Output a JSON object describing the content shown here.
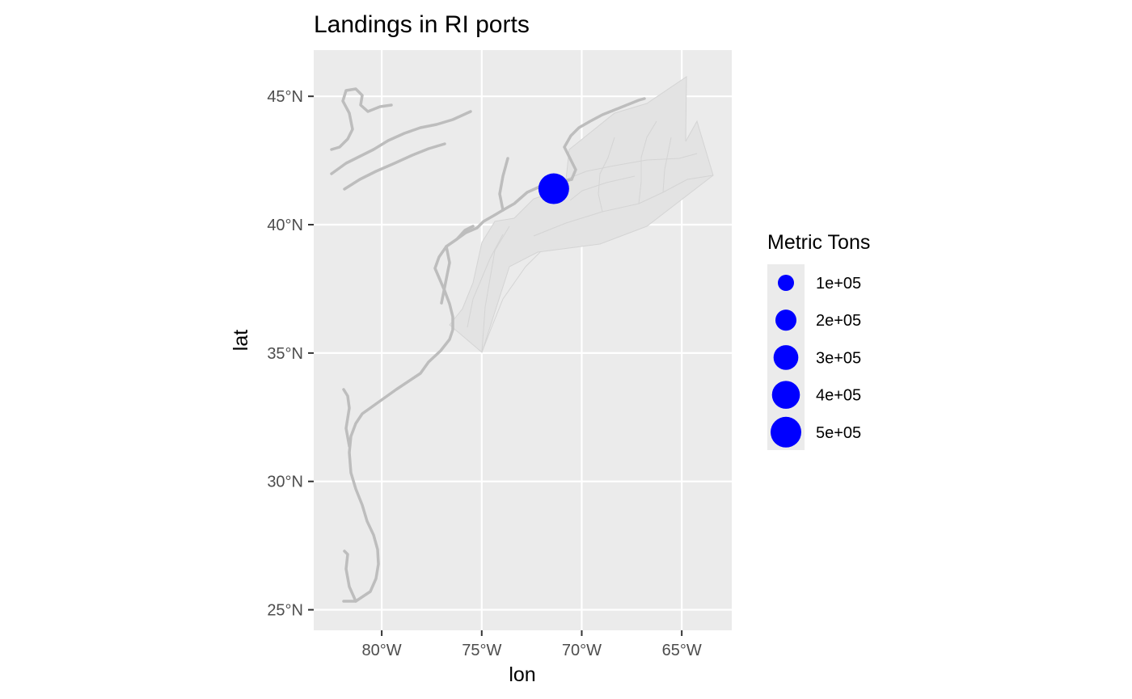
{
  "chart_data": {
    "type": "scatter",
    "title": "Landings in RI ports",
    "xlabel": "lon",
    "ylabel": "lat",
    "xlim": [
      -83.4,
      -62.5
    ],
    "ylim": [
      24.2,
      46.8
    ],
    "x_ticks": [
      {
        "value": -80,
        "label": "80°W"
      },
      {
        "value": -75,
        "label": "75°W"
      },
      {
        "value": -70,
        "label": "70°W"
      },
      {
        "value": -65,
        "label": "65°W"
      }
    ],
    "y_ticks": [
      {
        "value": 25,
        "label": "25°N"
      },
      {
        "value": 30,
        "label": "30°N"
      },
      {
        "value": 35,
        "label": "35°N"
      },
      {
        "value": 40,
        "label": "40°N"
      },
      {
        "value": 45,
        "label": "45°N"
      }
    ],
    "grid": true,
    "points": [
      {
        "lon": -71.4,
        "lat": 41.4,
        "metric_tons": 500000
      }
    ],
    "legend": {
      "title": "Metric Tons",
      "placement": "right",
      "entries": [
        {
          "label": "1e+05",
          "value": 100000
        },
        {
          "label": "2e+05",
          "value": 200000
        },
        {
          "label": "3e+05",
          "value": 300000
        },
        {
          "label": "4e+05",
          "value": 400000
        },
        {
          "label": "5e+05",
          "value": 500000
        }
      ]
    },
    "colors": {
      "panel": "#ebebeb",
      "grid": "#ffffff",
      "point": "#0000ff",
      "coast": "#bdbdbd",
      "region_fill": "#e3e3e3",
      "region_stroke": "#d4d4d4"
    }
  }
}
